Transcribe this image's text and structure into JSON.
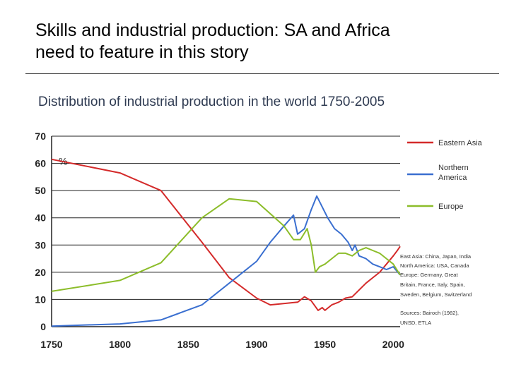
{
  "slide": {
    "title_line1": "Skills and industrial production: SA and Africa",
    "title_line2": "need to feature in this story"
  },
  "chart_data": {
    "type": "line",
    "title": "Distribution of industrial production in the world 1750-2005",
    "ylabel": "%",
    "xlabel": "",
    "xlim": [
      1750,
      2005
    ],
    "ylim": [
      0,
      70
    ],
    "x_ticks": [
      "1750",
      "1800",
      "1850",
      "1900",
      "1950",
      "2000"
    ],
    "y_ticks": [
      "0",
      "10",
      "20",
      "30",
      "40",
      "50",
      "60",
      "70"
    ],
    "grid": true,
    "legend_position": "right",
    "series": [
      {
        "name": "Eastern Asia",
        "color": "#d42a2a",
        "points": [
          [
            1750,
            61.5
          ],
          [
            1800,
            56.5
          ],
          [
            1830,
            50
          ],
          [
            1860,
            31
          ],
          [
            1880,
            18
          ],
          [
            1900,
            10.5
          ],
          [
            1910,
            8
          ],
          [
            1930,
            9
          ],
          [
            1935,
            11
          ],
          [
            1940,
            9.5
          ],
          [
            1945,
            6
          ],
          [
            1948,
            7
          ],
          [
            1950,
            6
          ],
          [
            1955,
            8
          ],
          [
            1960,
            9
          ],
          [
            1965,
            10.5
          ],
          [
            1970,
            11
          ],
          [
            1975,
            13.5
          ],
          [
            1980,
            16
          ],
          [
            1985,
            18
          ],
          [
            1990,
            20
          ],
          [
            1995,
            23
          ],
          [
            2000,
            26
          ],
          [
            2003,
            28
          ],
          [
            2005,
            29.5
          ]
        ]
      },
      {
        "name": "Northern America",
        "color": "#3a6fd0",
        "points": [
          [
            1750,
            0.2
          ],
          [
            1800,
            1
          ],
          [
            1830,
            2.5
          ],
          [
            1860,
            8
          ],
          [
            1880,
            16
          ],
          [
            1900,
            24
          ],
          [
            1910,
            31
          ],
          [
            1920,
            37
          ],
          [
            1927,
            41
          ],
          [
            1930,
            34
          ],
          [
            1935,
            36
          ],
          [
            1940,
            43
          ],
          [
            1944,
            48
          ],
          [
            1948,
            44
          ],
          [
            1952,
            40
          ],
          [
            1957,
            36
          ],
          [
            1962,
            34
          ],
          [
            1967,
            31
          ],
          [
            1970,
            28
          ],
          [
            1972,
            30
          ],
          [
            1975,
            26
          ],
          [
            1980,
            25
          ],
          [
            1985,
            23
          ],
          [
            1990,
            22
          ],
          [
            1995,
            21
          ],
          [
            2000,
            22
          ],
          [
            2005,
            19
          ]
        ]
      },
      {
        "name": "Europe",
        "color": "#8cbd2a",
        "points": [
          [
            1750,
            13
          ],
          [
            1800,
            17
          ],
          [
            1830,
            23.5
          ],
          [
            1860,
            40
          ],
          [
            1880,
            47
          ],
          [
            1900,
            46
          ],
          [
            1920,
            37
          ],
          [
            1927,
            32
          ],
          [
            1932,
            32
          ],
          [
            1937,
            36
          ],
          [
            1940,
            30
          ],
          [
            1943,
            20
          ],
          [
            1946,
            22
          ],
          [
            1950,
            23
          ],
          [
            1955,
            25
          ],
          [
            1960,
            27
          ],
          [
            1965,
            27
          ],
          [
            1970,
            26
          ],
          [
            1975,
            28
          ],
          [
            1980,
            29
          ],
          [
            1985,
            28
          ],
          [
            1990,
            27
          ],
          [
            1995,
            25
          ],
          [
            2000,
            23
          ],
          [
            2005,
            19
          ]
        ]
      }
    ],
    "source_notes": [
      "East Asia: China, Japan, India",
      "North America: USA, Canada",
      "Europe: Germany, Great",
      "Britain, France, Italy, Spain,",
      "Sweden, Belgium, Switzerland",
      "Sources: Bairoch (1982),",
      "UNSD, ETLA"
    ]
  }
}
